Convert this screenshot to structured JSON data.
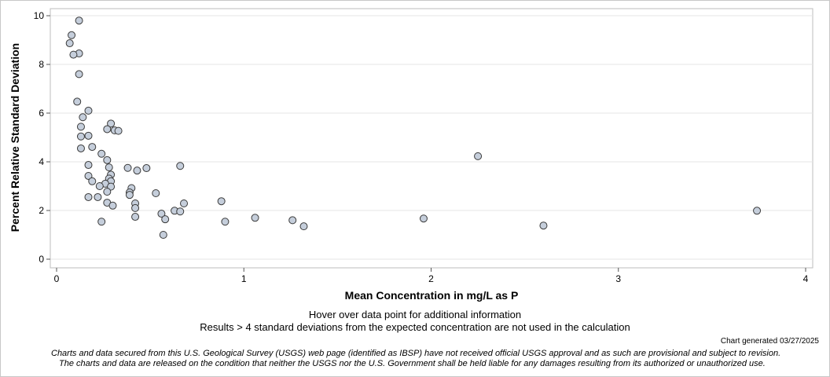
{
  "chart_data": {
    "type": "scatter",
    "title": "",
    "xlabel": "Mean Concentration in mg/L as P",
    "ylabel": "Percent Relative Standard Deviation",
    "xlim": [
      0,
      4
    ],
    "ylim": [
      0,
      10
    ],
    "x_ticks": [
      0,
      1,
      2,
      3,
      4
    ],
    "y_ticks": [
      0,
      2,
      4,
      6,
      8,
      10
    ],
    "grid": "horizontal",
    "legend": "none",
    "marker_fill": "#c5cedb",
    "marker_stroke": "#3a3a3a",
    "points": [
      {
        "x": 0.12,
        "y": 9.8
      },
      {
        "x": 0.08,
        "y": 9.2
      },
      {
        "x": 0.07,
        "y": 8.87
      },
      {
        "x": 0.12,
        "y": 8.45
      },
      {
        "x": 0.09,
        "y": 8.4
      },
      {
        "x": 0.12,
        "y": 7.6
      },
      {
        "x": 0.11,
        "y": 6.47
      },
      {
        "x": 0.17,
        "y": 6.1
      },
      {
        "x": 0.14,
        "y": 5.83
      },
      {
        "x": 0.29,
        "y": 5.57
      },
      {
        "x": 0.13,
        "y": 5.44
      },
      {
        "x": 0.27,
        "y": 5.34
      },
      {
        "x": 0.31,
        "y": 5.29
      },
      {
        "x": 0.33,
        "y": 5.27
      },
      {
        "x": 0.17,
        "y": 5.07
      },
      {
        "x": 0.13,
        "y": 5.04
      },
      {
        "x": 0.19,
        "y": 4.61
      },
      {
        "x": 0.13,
        "y": 4.55
      },
      {
        "x": 0.24,
        "y": 4.33
      },
      {
        "x": 0.27,
        "y": 4.07
      },
      {
        "x": 0.17,
        "y": 3.87
      },
      {
        "x": 0.66,
        "y": 3.83
      },
      {
        "x": 0.28,
        "y": 3.77
      },
      {
        "x": 0.38,
        "y": 3.75
      },
      {
        "x": 0.48,
        "y": 3.74
      },
      {
        "x": 0.43,
        "y": 3.64
      },
      {
        "x": 0.29,
        "y": 3.47
      },
      {
        "x": 0.17,
        "y": 3.42
      },
      {
        "x": 0.28,
        "y": 3.31
      },
      {
        "x": 0.29,
        "y": 3.2
      },
      {
        "x": 0.19,
        "y": 3.2
      },
      {
        "x": 0.26,
        "y": 3.1
      },
      {
        "x": 0.23,
        "y": 3.0
      },
      {
        "x": 0.29,
        "y": 2.98
      },
      {
        "x": 0.4,
        "y": 2.92
      },
      {
        "x": 0.27,
        "y": 2.77
      },
      {
        "x": 0.39,
        "y": 2.74
      },
      {
        "x": 0.39,
        "y": 2.64
      },
      {
        "x": 0.53,
        "y": 2.71
      },
      {
        "x": 0.17,
        "y": 2.55
      },
      {
        "x": 0.22,
        "y": 2.55
      },
      {
        "x": 0.88,
        "y": 2.38
      },
      {
        "x": 0.27,
        "y": 2.32
      },
      {
        "x": 0.42,
        "y": 2.29
      },
      {
        "x": 0.68,
        "y": 2.29
      },
      {
        "x": 0.3,
        "y": 2.2
      },
      {
        "x": 0.42,
        "y": 2.1
      },
      {
        "x": 0.63,
        "y": 1.99
      },
      {
        "x": 0.66,
        "y": 1.96
      },
      {
        "x": 0.56,
        "y": 1.87
      },
      {
        "x": 0.42,
        "y": 1.74
      },
      {
        "x": 1.06,
        "y": 1.7
      },
      {
        "x": 1.96,
        "y": 1.67
      },
      {
        "x": 0.58,
        "y": 1.64
      },
      {
        "x": 1.26,
        "y": 1.6
      },
      {
        "x": 0.24,
        "y": 1.54
      },
      {
        "x": 0.9,
        "y": 1.54
      },
      {
        "x": 1.32,
        "y": 1.35
      },
      {
        "x": 0.57,
        "y": 1.0
      },
      {
        "x": 2.25,
        "y": 4.23
      },
      {
        "x": 2.6,
        "y": 1.38
      },
      {
        "x": 3.74,
        "y": 1.99
      }
    ]
  },
  "notes": {
    "hover": "Hover over data point for additional information",
    "results": "Results > 4 standard deviations from the expected concentration are not used in the calculation",
    "generated": "Chart generated 03/27/2025",
    "disclaimer_line1": "Charts and data secured from this U.S. Geological Survey (USGS) web page (identified as IBSP) have not received official USGS approval and as such are provisional and subject to revision.",
    "disclaimer_line2": "The charts and data are released on the condition that neither the USGS nor the U.S. Government shall be held liable for any damages resulting from its authorized or unauthorized use."
  }
}
